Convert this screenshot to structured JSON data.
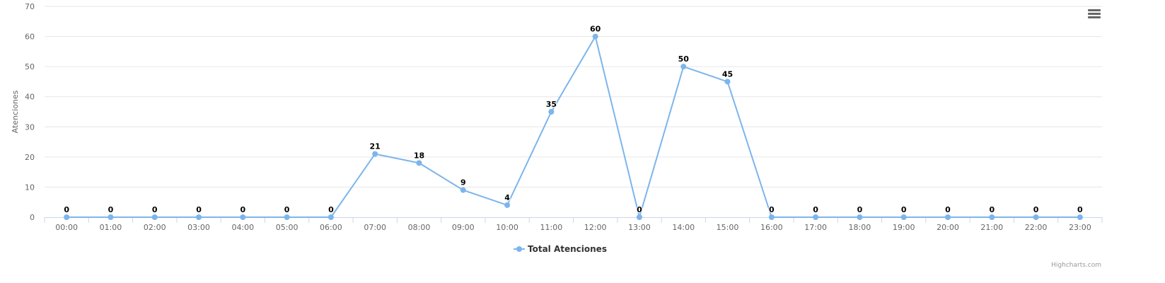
{
  "chart_data": {
    "type": "line",
    "categories": [
      "00:00",
      "01:00",
      "02:00",
      "03:00",
      "04:00",
      "05:00",
      "06:00",
      "07:00",
      "08:00",
      "09:00",
      "10:00",
      "11:00",
      "12:00",
      "13:00",
      "14:00",
      "15:00",
      "16:00",
      "17:00",
      "18:00",
      "19:00",
      "20:00",
      "21:00",
      "22:00",
      "23:00"
    ],
    "series": [
      {
        "name": "Total Atenciones",
        "values": [
          0,
          0,
          0,
          0,
          0,
          0,
          0,
          21,
          18,
          9,
          4,
          35,
          60,
          0,
          50,
          45,
          0,
          0,
          0,
          0,
          0,
          0,
          0,
          0
        ],
        "color": "#7cb5ec"
      }
    ],
    "title": "",
    "xlabel": "",
    "ylabel": "Atenciones",
    "ylim": [
      0,
      70
    ],
    "yticks": [
      0,
      10,
      20,
      30,
      40,
      50,
      60,
      70
    ],
    "grid": true,
    "data_labels": true,
    "legend_position": "bottom-center"
  },
  "menu": {
    "icon": "hamburger-icon"
  },
  "credits": {
    "text": "Highcharts.com"
  }
}
